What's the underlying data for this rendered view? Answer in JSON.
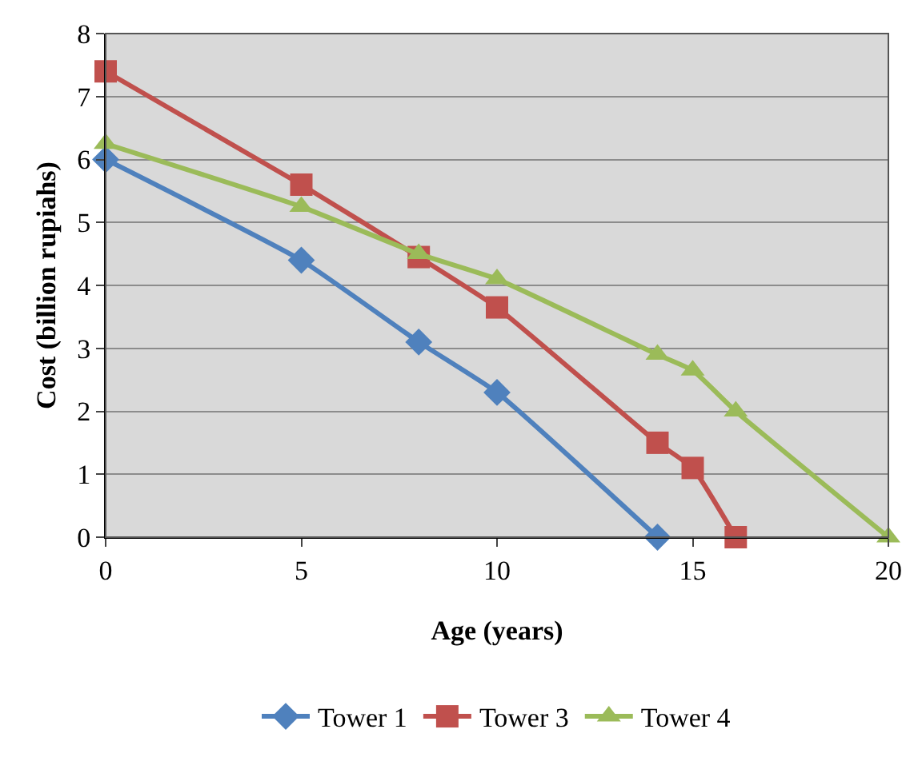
{
  "chart_data": {
    "type": "line",
    "xlabel": "Age (years)",
    "ylabel": "Cost (billion rupiahs)",
    "xlim": [
      0,
      20
    ],
    "xticks": [
      0,
      5,
      10,
      15,
      20
    ],
    "ylim": [
      0,
      8
    ],
    "yticks": [
      0,
      1,
      2,
      3,
      4,
      5,
      6,
      7,
      8
    ],
    "grid": "y",
    "legend": "bottom",
    "series": [
      {
        "name": "Tower 1",
        "color": "#4f81bd",
        "marker": "diamond",
        "x": [
          0,
          5,
          8,
          10,
          14.1
        ],
        "values": [
          6.0,
          4.4,
          3.1,
          2.3,
          0
        ]
      },
      {
        "name": "Tower 3",
        "color": "#c0504d",
        "marker": "square",
        "x": [
          0,
          5,
          8,
          10,
          14.1,
          15,
          16.1
        ],
        "values": [
          7.4,
          5.6,
          4.45,
          3.65,
          1.5,
          1.1,
          0
        ]
      },
      {
        "name": "Tower 4",
        "color": "#9bbb59",
        "marker": "triangle",
        "x": [
          0,
          5,
          8,
          10,
          14.1,
          15,
          16.1,
          20
        ],
        "values": [
          6.25,
          5.25,
          4.5,
          4.1,
          2.9,
          2.65,
          2.0,
          0
        ]
      }
    ]
  }
}
